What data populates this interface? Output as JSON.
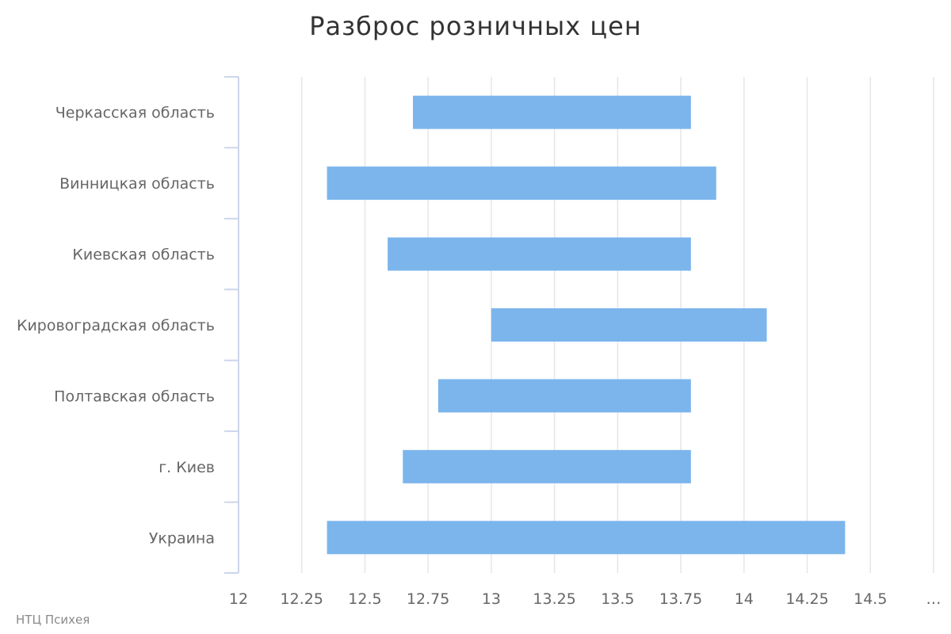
{
  "chart_data": {
    "type": "bar",
    "orientation": "horizontal",
    "chart_style": "floating range bars",
    "title": "Разброс розничных цен",
    "categories": [
      "Черкасская область",
      "Винницкая область",
      "Киевская область",
      "Кировоградская область",
      "Полтавская область",
      "г. Киев",
      "Украина"
    ],
    "series": [
      {
        "ranges": [
          [
            12.69,
            13.79
          ],
          [
            12.35,
            13.89
          ],
          [
            12.59,
            13.79
          ],
          [
            13.0,
            14.09
          ],
          [
            12.79,
            13.79
          ],
          [
            12.65,
            13.79
          ],
          [
            12.35,
            14.4
          ]
        ]
      }
    ],
    "x_ticks": [
      "12",
      "12.25",
      "12.5",
      "12.75",
      "13",
      "13.25",
      "13.5",
      "13.75",
      "14",
      "14.25",
      "14.5",
      "…"
    ],
    "xlim": [
      12,
      14.75
    ],
    "grid": "vertical",
    "colors": {
      "bar": "#7cb5ec",
      "grid": "#e6e6e6",
      "axis": "#ccd6eb"
    }
  },
  "credits": "НТЦ Психея"
}
